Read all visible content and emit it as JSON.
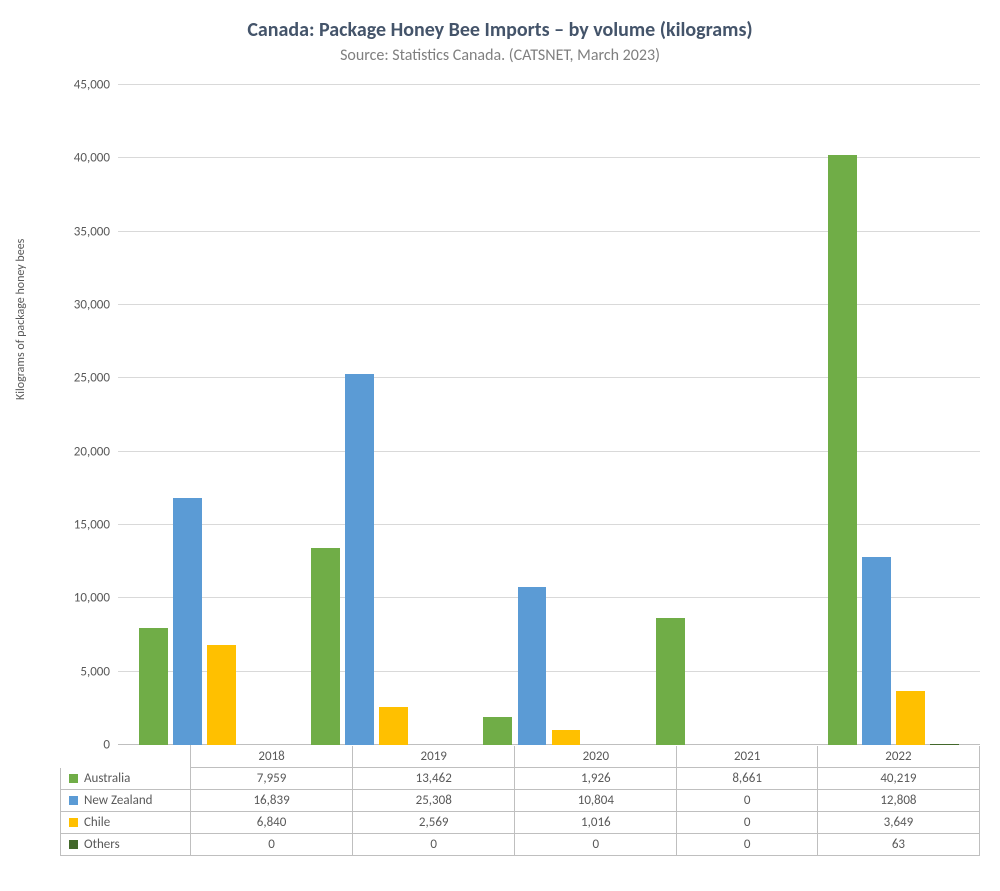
{
  "chart": {
    "type": "bar",
    "title": "Canada: Package Honey Bee Imports – by volume (kilograms)",
    "subtitle": "Source: Statistics Canada. (CATSNET, March 2023)",
    "title_color": "#44546a",
    "subtitle_color": "#7f7f7f",
    "title_fontsize": 20,
    "subtitle_fontsize": 16,
    "background_color": "#ffffff",
    "grid_color": "#d9d9d9",
    "axis_text_color": "#595959",
    "y_axis": {
      "label": "Kilograms of package honey bees",
      "min": 0,
      "max": 45000,
      "tick_step": 5000,
      "ticks": [
        "0",
        "5,000",
        "10,000",
        "15,000",
        "20,000",
        "25,000",
        "30,000",
        "35,000",
        "40,000",
        "45,000"
      ]
    },
    "categories": [
      "2018",
      "2019",
      "2020",
      "2021",
      "2022"
    ],
    "series": [
      {
        "name": "Australia",
        "color": "#70ad47",
        "values": [
          7959,
          13462,
          1926,
          8661,
          40219
        ],
        "labels": [
          "7,959",
          "13,462",
          "1,926",
          "8,661",
          "40,219"
        ]
      },
      {
        "name": "New Zealand",
        "color": "#5b9bd5",
        "values": [
          16839,
          25308,
          10804,
          0,
          12808
        ],
        "labels": [
          "16,839",
          "25,308",
          "10,804",
          "0",
          "12,808"
        ]
      },
      {
        "name": "Chile",
        "color": "#ffc000",
        "values": [
          6840,
          2569,
          1016,
          0,
          3649
        ],
        "labels": [
          "6,840",
          "2,569",
          "1,016",
          "0",
          "3,649"
        ]
      },
      {
        "name": "Others",
        "color": "#43682b",
        "values": [
          0,
          0,
          0,
          0,
          63
        ],
        "labels": [
          "0",
          "0",
          "0",
          "0",
          "63"
        ]
      }
    ],
    "bar_gap_ratio": 0.18,
    "group_padding_ratio": 0.12
  }
}
